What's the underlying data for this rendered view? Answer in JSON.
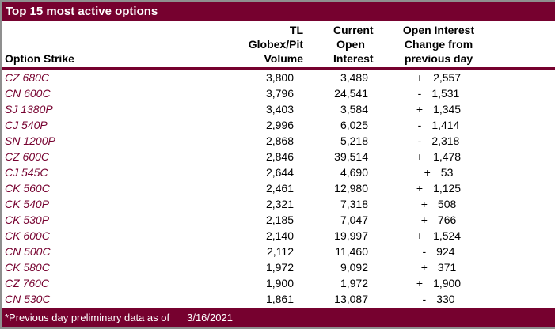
{
  "title": "Top 15 most active options",
  "header": {
    "strike": "Option Strike",
    "volume_lines": [
      "TL Globex/Pit",
      "Volume"
    ],
    "open_interest_lines": [
      "Current",
      "Open",
      "Interest"
    ],
    "change_lines": [
      "Open Interest",
      "Change from",
      "previous day"
    ]
  },
  "rows": [
    {
      "strike": "CZ 680C",
      "volume": "3,800",
      "open_interest": "3,489",
      "change_sign": "+",
      "change_value": "2,557"
    },
    {
      "strike": "CN 600C",
      "volume": "3,796",
      "open_interest": "24,541",
      "change_sign": "-",
      "change_value": "1,531"
    },
    {
      "strike": "SJ 1380P",
      "volume": "3,403",
      "open_interest": "3,584",
      "change_sign": "+",
      "change_value": "1,345"
    },
    {
      "strike": "CJ 540P",
      "volume": "2,996",
      "open_interest": "6,025",
      "change_sign": "-",
      "change_value": "1,414"
    },
    {
      "strike": "SN 1200P",
      "volume": "2,868",
      "open_interest": "5,218",
      "change_sign": "-",
      "change_value": "2,318"
    },
    {
      "strike": "CZ 600C",
      "volume": "2,846",
      "open_interest": "39,514",
      "change_sign": "+",
      "change_value": "1,478"
    },
    {
      "strike": "CJ 545C",
      "volume": "2,644",
      "open_interest": "4,690",
      "change_sign": "+",
      "change_value": "53"
    },
    {
      "strike": "CK 560C",
      "volume": "2,461",
      "open_interest": "12,980",
      "change_sign": "+",
      "change_value": "1,125"
    },
    {
      "strike": "CK 540P",
      "volume": "2,321",
      "open_interest": "7,318",
      "change_sign": "+",
      "change_value": "508"
    },
    {
      "strike": "CK 530P",
      "volume": "2,185",
      "open_interest": "7,047",
      "change_sign": "+",
      "change_value": "766"
    },
    {
      "strike": "CK 600C",
      "volume": "2,140",
      "open_interest": "19,997",
      "change_sign": "+",
      "change_value": "1,524"
    },
    {
      "strike": "CN 500C",
      "volume": "2,112",
      "open_interest": "11,460",
      "change_sign": "-",
      "change_value": "924"
    },
    {
      "strike": "CK 580C",
      "volume": "1,972",
      "open_interest": "9,092",
      "change_sign": "+",
      "change_value": "371"
    },
    {
      "strike": "CZ 760C",
      "volume": "1,900",
      "open_interest": "1,972",
      "change_sign": "+",
      "change_value": "1,900"
    },
    {
      "strike": "CN 530C",
      "volume": "1,861",
      "open_interest": "13,087",
      "change_sign": "-",
      "change_value": "330"
    }
  ],
  "footer": {
    "note": "*Previous day preliminary data as of",
    "date": "3/16/2021"
  },
  "colors": {
    "maroon": "#76012F",
    "border_gray": "#8F8F8F",
    "body_text": "#000000",
    "title_text": "#FFFFFF"
  },
  "chart_data": {
    "type": "table",
    "title": "Top 15 most active options",
    "columns": [
      "Option Strike",
      "TL Globex/Pit Volume",
      "Current Open Interest",
      "Open Interest Change from previous day"
    ],
    "rows": [
      [
        "CZ 680C",
        3800,
        3489,
        2557
      ],
      [
        "CN 600C",
        3796,
        24541,
        -1531
      ],
      [
        "SJ 1380P",
        3403,
        3584,
        1345
      ],
      [
        "CJ 540P",
        2996,
        6025,
        -1414
      ],
      [
        "SN 1200P",
        2868,
        5218,
        -2318
      ],
      [
        "CZ 600C",
        2846,
        39514,
        1478
      ],
      [
        "CJ 545C",
        2644,
        4690,
        53
      ],
      [
        "CK 560C",
        2461,
        12980,
        1125
      ],
      [
        "CK 540P",
        2321,
        7318,
        508
      ],
      [
        "CK 530P",
        2185,
        7047,
        766
      ],
      [
        "CK 600C",
        2140,
        19997,
        1524
      ],
      [
        "CN 500C",
        2112,
        11460,
        -924
      ],
      [
        "CK 580C",
        1972,
        9092,
        371
      ],
      [
        "CZ 760C",
        1900,
        1972,
        1900
      ],
      [
        "CN 530C",
        1861,
        13087,
        -330
      ]
    ],
    "footnote": "*Previous day preliminary data as of 3/16/2021"
  }
}
